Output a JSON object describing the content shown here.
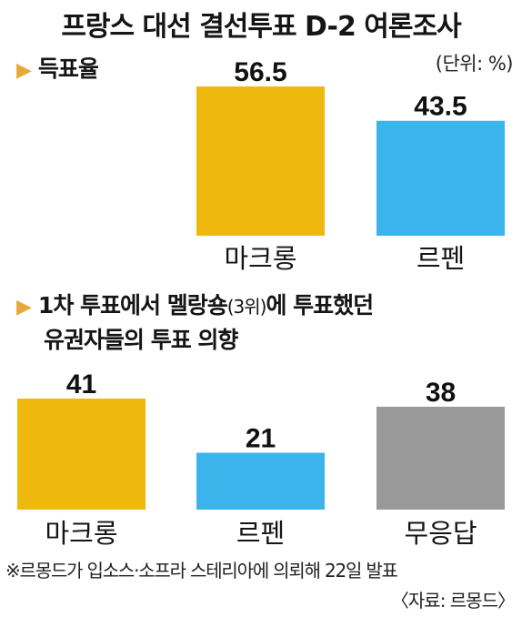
{
  "title": "프랑스 대선 결선투표 D-2 여론조사",
  "unit_label": "(단위: %)",
  "sections": [
    {
      "marker": "▶",
      "heading": "득표율"
    },
    {
      "marker": "▶",
      "heading_parts": [
        "1차 투표에서 멜랑숑",
        "(3위)",
        "에 투표했던"
      ],
      "heading_line2": "유권자들의 투표 의향"
    }
  ],
  "chart_data": [
    {
      "type": "bar",
      "title": "득표율",
      "categories": [
        "마크롱",
        "르펜"
      ],
      "values": [
        56.5,
        43.5
      ],
      "value_labels": [
        "56.5",
        "43.5"
      ],
      "colors": [
        "#efb80d",
        "#3ab4ea"
      ],
      "ylim": [
        0,
        56.5
      ]
    },
    {
      "type": "bar",
      "title": "1차 투표에서 멜랑숑(3위)에 투표했던 유권자들의 투표 의향",
      "categories": [
        "마크롱",
        "르펜",
        "무응답"
      ],
      "values": [
        41,
        21,
        38
      ],
      "value_labels": [
        "41",
        "21",
        "38"
      ],
      "colors": [
        "#efb80d",
        "#3ab4ea",
        "#999999"
      ],
      "ylim": [
        0,
        41
      ]
    }
  ],
  "footnote": "※르몽드가 입소스·소프라 스테리아에 의뢰해 22일 발표",
  "source": "〈자료: 르몽드〉"
}
